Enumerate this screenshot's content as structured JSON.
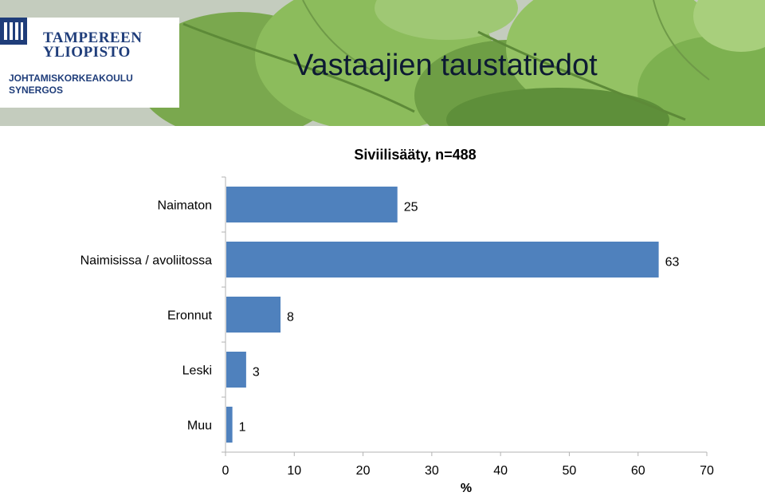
{
  "slide": {
    "title": "Vastaajien taustatiedot"
  },
  "logo": {
    "name_line1": "TAMPEREEN",
    "name_line2": "YLIOPISTO",
    "unit_line1": "JOHTAMISKORKEAKOULU",
    "unit_line2": "SYNERGOS"
  },
  "colors": {
    "bar": "#4f81bd",
    "axis": "#b3b3b3",
    "text": "#000000"
  },
  "chart_data": {
    "type": "bar",
    "orientation": "horizontal",
    "title": "Siviilisääty, n=488",
    "categories": [
      "Naimaton",
      "Naimisissa / avoliitossa",
      "Eronnut",
      "Leski",
      "Muu"
    ],
    "values": [
      25,
      63,
      8,
      3,
      1
    ],
    "data_labels": [
      "25",
      "63",
      "8",
      "3",
      "1"
    ],
    "xlabel": "%",
    "ylabel": "",
    "xlim": [
      0,
      70
    ],
    "xticks": [
      0,
      10,
      20,
      30,
      40,
      50,
      60,
      70
    ],
    "grid": false,
    "legend": "none"
  }
}
